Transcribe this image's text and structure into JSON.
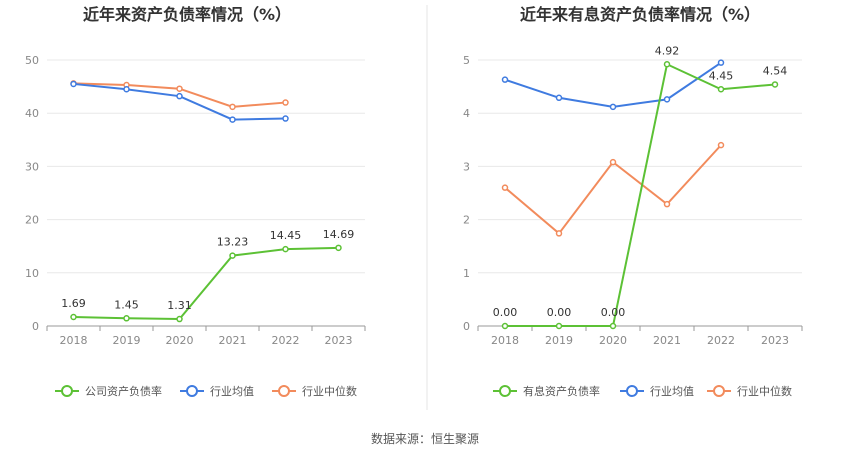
{
  "source": "数据来源：恒生聚源",
  "chart_data": [
    {
      "type": "line",
      "title": "近年来资产负债率情况（%）",
      "categories": [
        "2018",
        "2019",
        "2020",
        "2021",
        "2022",
        "2023"
      ],
      "ylim": [
        0,
        50
      ],
      "yticks": [
        0,
        10,
        20,
        30,
        40,
        50
      ],
      "grid": true,
      "legend_position": "bottom",
      "series": [
        {
          "name": "公司资产负债率",
          "color": "#5cc135",
          "values": [
            1.69,
            1.45,
            1.31,
            13.23,
            14.45,
            14.69
          ],
          "labels": [
            "1.69",
            "1.45",
            "1.31",
            "13.23",
            "14.45",
            "14.69"
          ]
        },
        {
          "name": "行业均值",
          "color": "#3f7be0",
          "values": [
            45.5,
            44.5,
            43.2,
            38.8,
            39.0,
            null
          ]
        },
        {
          "name": "行业中位数",
          "color": "#f28b5c",
          "values": [
            45.6,
            45.3,
            44.6,
            41.2,
            42.0,
            null
          ]
        }
      ]
    },
    {
      "type": "line",
      "title": "近年来有息资产负债率情况（%）",
      "categories": [
        "2018",
        "2019",
        "2020",
        "2021",
        "2022",
        "2023"
      ],
      "ylim": [
        0,
        5
      ],
      "yticks": [
        0,
        1,
        2,
        3,
        4,
        5
      ],
      "grid": true,
      "legend_position": "bottom",
      "series": [
        {
          "name": "有息资产负债率",
          "color": "#5cc135",
          "values": [
            0.0,
            0.0,
            0.0,
            4.92,
            4.45,
            4.54
          ],
          "labels": [
            "0.00",
            "0.00",
            "0.00",
            "4.92",
            "4.45",
            "4.54"
          ]
        },
        {
          "name": "行业均值",
          "color": "#3f7be0",
          "values": [
            4.63,
            4.29,
            4.12,
            4.26,
            4.95,
            null
          ]
        },
        {
          "name": "行业中位数",
          "color": "#f28b5c",
          "values": [
            2.6,
            1.74,
            3.08,
            2.29,
            3.4,
            null
          ]
        }
      ]
    }
  ]
}
